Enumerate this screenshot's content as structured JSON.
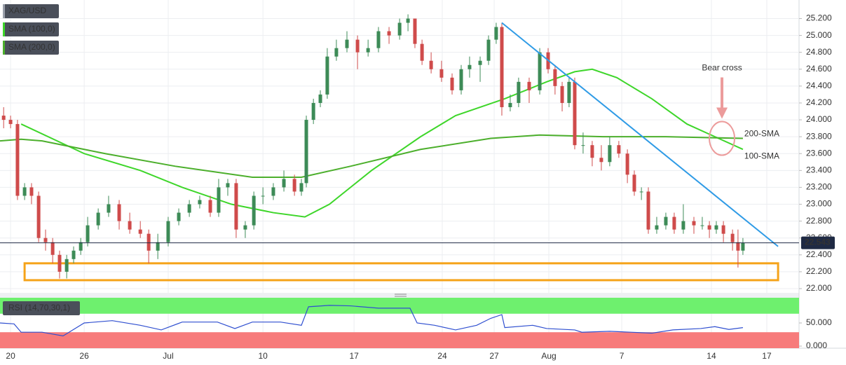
{
  "chart_data": [
    {
      "type": "candlestick",
      "symbol": "XAG/USD",
      "up_color": "#3d8b57",
      "down_color": "#cf4b4b",
      "x": [
        -0.38,
        0,
        0.38,
        0.77,
        1.15,
        1.54,
        1.92,
        2.31,
        2.69,
        3.08,
        3.46,
        3.85,
        4.23,
        4.81,
        5.38,
        5.96,
        6.54,
        7.12,
        7.58,
        8.08,
        8.65,
        9.23,
        9.81,
        10.38,
        10.96,
        11.42,
        11.92,
        12.38,
        12.88,
        13.35,
        13.85,
        14.42,
        15,
        15.58,
        15.96,
        16.23,
        16.62,
        17,
        17.38,
        17.88,
        18.46,
        19.04,
        19.62,
        20.19,
        20.77,
        21.35,
        21.81,
        22.19,
        22.58,
        23.08,
        23.65,
        24.23,
        24.73,
        25.19,
        25.77,
        26.23,
        26.65,
        26.96,
        27.42,
        27.88,
        28.46,
        29.04,
        29.5,
        29.88,
        30.27,
        30.65,
        30.96,
        31.42,
        31.92,
        32.42,
        32.88,
        33.38,
        33.85,
        34.23,
        34.62,
        35,
        35.46,
        35.96,
        36.42,
        36.92,
        37.5,
        37.96,
        38.35,
        38.73,
        39.12,
        39.62,
        39.92,
        40.19
      ],
      "open": [
        24.05,
        24.0,
        23.95,
        23.1,
        23.2,
        23.1,
        22.6,
        22.55,
        22.4,
        22.2,
        22.35,
        22.45,
        22.55,
        22.75,
        22.9,
        23.0,
        22.8,
        22.7,
        22.65,
        22.45,
        22.55,
        22.8,
        22.9,
        23.0,
        23.05,
        22.9,
        23.2,
        23.25,
        22.7,
        22.75,
        23.1,
        23.1,
        23.2,
        23.3,
        23.15,
        23.25,
        24.0,
        24.2,
        24.3,
        24.75,
        24.85,
        24.95,
        24.8,
        24.85,
        25.05,
        25.0,
        25.15,
        25.2,
        24.9,
        24.7,
        24.6,
        24.5,
        24.35,
        24.6,
        24.65,
        24.7,
        24.95,
        25.1,
        24.15,
        24.2,
        24.45,
        24.35,
        24.8,
        24.6,
        24.4,
        24.2,
        24.45,
        23.7,
        23.7,
        23.55,
        23.5,
        23.7,
        23.6,
        23.35,
        23.15,
        23.15,
        22.7,
        22.75,
        22.85,
        22.7,
        22.8,
        22.75,
        22.75,
        22.7,
        22.75,
        22.65,
        22.55,
        22.45
      ],
      "high": [
        24.15,
        24.05,
        24.0,
        23.25,
        23.25,
        23.15,
        22.7,
        22.6,
        22.45,
        22.4,
        22.5,
        22.6,
        22.85,
        22.95,
        23.1,
        23.05,
        22.9,
        22.8,
        22.7,
        22.65,
        22.85,
        22.95,
        23.05,
        23.1,
        23.1,
        23.3,
        23.3,
        23.3,
        22.8,
        23.15,
        23.2,
        23.25,
        23.4,
        23.35,
        23.3,
        24.05,
        24.25,
        24.35,
        24.85,
        24.95,
        25.05,
        25.0,
        24.95,
        25.1,
        25.1,
        25.2,
        25.25,
        25.2,
        24.95,
        24.8,
        24.7,
        24.55,
        24.65,
        24.75,
        24.75,
        25.0,
        25.15,
        25.15,
        24.3,
        24.5,
        24.5,
        24.85,
        24.85,
        24.65,
        24.45,
        24.5,
        24.5,
        23.85,
        23.75,
        23.7,
        23.8,
        23.75,
        23.65,
        23.4,
        23.2,
        23.2,
        22.85,
        22.9,
        22.9,
        23.0,
        22.85,
        22.85,
        22.8,
        22.8,
        22.8,
        22.7,
        22.7,
        22.6
      ],
      "low": [
        23.9,
        23.9,
        23.05,
        23.05,
        23.0,
        22.55,
        22.45,
        22.3,
        22.12,
        22.12,
        22.3,
        22.4,
        22.5,
        22.7,
        22.85,
        22.7,
        22.65,
        22.6,
        22.3,
        22.35,
        22.5,
        22.75,
        22.85,
        22.95,
        22.85,
        22.85,
        23.1,
        22.6,
        22.6,
        22.7,
        23.0,
        23.05,
        23.15,
        23.1,
        23.1,
        23.2,
        23.95,
        24.15,
        24.25,
        24.7,
        24.8,
        24.6,
        24.75,
        24.8,
        24.9,
        24.95,
        25.05,
        24.85,
        24.65,
        24.55,
        24.45,
        24.3,
        24.3,
        24.5,
        24.45,
        24.65,
        24.9,
        24.05,
        24.1,
        24.15,
        24.2,
        24.3,
        24.55,
        24.3,
        24.1,
        24.15,
        23.65,
        23.6,
        23.45,
        23.4,
        23.45,
        23.55,
        23.25,
        23.1,
        23.05,
        22.65,
        22.65,
        22.7,
        22.65,
        22.65,
        22.65,
        22.7,
        22.6,
        22.65,
        22.55,
        22.45,
        22.25,
        22.4
      ],
      "close": [
        24.0,
        23.95,
        23.1,
        23.2,
        23.1,
        22.6,
        22.55,
        22.4,
        22.2,
        22.35,
        22.45,
        22.55,
        22.75,
        22.9,
        23.0,
        22.8,
        22.7,
        22.65,
        22.45,
        22.55,
        22.8,
        22.9,
        23.0,
        23.05,
        22.9,
        23.2,
        23.25,
        22.7,
        22.75,
        23.1,
        23.1,
        23.2,
        23.3,
        23.15,
        23.25,
        24.0,
        24.2,
        24.3,
        24.75,
        24.85,
        24.95,
        24.8,
        24.85,
        25.05,
        25.0,
        25.15,
        25.2,
        24.9,
        24.7,
        24.6,
        24.5,
        24.35,
        24.6,
        24.65,
        24.7,
        24.95,
        25.1,
        24.15,
        24.2,
        24.45,
        24.35,
        24.8,
        24.6,
        24.4,
        24.2,
        24.45,
        23.7,
        23.7,
        23.55,
        23.5,
        23.7,
        23.6,
        23.35,
        23.15,
        23.15,
        22.7,
        22.75,
        22.85,
        22.7,
        22.8,
        22.75,
        22.75,
        22.7,
        22.75,
        22.65,
        22.55,
        22.45,
        22.543
      ],
      "series": [
        {
          "name": "SMA (100,0)",
          "label": "100-SMA",
          "color": "#3ed62a",
          "x": [
            0.58,
            4.04,
            7.12,
            9.42,
            12.12,
            14.42,
            16.15,
            17.5,
            19.81,
            22.5,
            24.42,
            27.12,
            29.42,
            30.96,
            31.92,
            33.27,
            35.19,
            37.12,
            38.65,
            40.19
          ],
          "values": [
            23.95,
            23.6,
            23.4,
            23.2,
            23.0,
            22.9,
            22.85,
            23.0,
            23.4,
            23.8,
            24.05,
            24.25,
            24.45,
            24.57,
            24.6,
            24.5,
            24.25,
            23.95,
            23.8,
            23.65
          ]
        },
        {
          "name": "SMA (200,0)",
          "label": "200-SMA",
          "color": "#4caf2c",
          "x": [
            -0.58,
            0.58,
            1.73,
            5.19,
            9.04,
            13.27,
            15.96,
            18.65,
            22.5,
            26.35,
            29.04,
            32.5,
            35.96,
            40.19
          ],
          "values": [
            23.75,
            23.77,
            23.75,
            23.6,
            23.45,
            23.32,
            23.32,
            23.45,
            23.65,
            23.78,
            23.82,
            23.8,
            23.8,
            23.78
          ]
        }
      ],
      "trendline": {
        "color": "#2f9be6",
        "x": [
          26.96,
          42.12
        ],
        "values": [
          25.15,
          22.5
        ]
      },
      "support_zone": {
        "color": "#f5a31a",
        "x": [
          0.77,
          42.12
        ],
        "values": [
          22.1,
          22.3
        ]
      },
      "last_price": 22.543,
      "bear_cross": {
        "text": "Bear cross",
        "color": "#ec9b9b",
        "x": 39.04,
        "value": 23.78
      },
      "xlim": [
        -0.58,
        43.27
      ],
      "xticks": [
        {
          "value": 0,
          "label": "20"
        },
        {
          "value": 4.04,
          "label": "26"
        },
        {
          "value": 8.65,
          "label": "Jul"
        },
        {
          "value": 13.85,
          "label": "10"
        },
        {
          "value": 18.85,
          "label": "17"
        },
        {
          "value": 23.69,
          "label": "24"
        },
        {
          "value": 26.54,
          "label": "27"
        },
        {
          "value": 29.54,
          "label": "Aug"
        },
        {
          "value": 33.54,
          "label": "7"
        },
        {
          "value": 38.46,
          "label": "14"
        },
        {
          "value": 41.5,
          "label": "17"
        }
      ],
      "ylim": [
        21.95,
        25.42
      ],
      "yticks": [
        {
          "value": 22.0,
          "label": "22.000"
        },
        {
          "value": 22.2,
          "label": "22.200"
        },
        {
          "value": 22.4,
          "label": "22.400"
        },
        {
          "value": 22.6,
          "label": "22.600"
        },
        {
          "value": 22.8,
          "label": "22.800"
        },
        {
          "value": 23.0,
          "label": "23.000"
        },
        {
          "value": 23.2,
          "label": "23.200"
        },
        {
          "value": 23.4,
          "label": "23.400"
        },
        {
          "value": 23.6,
          "label": "23.600"
        },
        {
          "value": 23.8,
          "label": "23.800"
        },
        {
          "value": 24.0,
          "label": "24.000"
        },
        {
          "value": 24.2,
          "label": "24.200"
        },
        {
          "value": 24.4,
          "label": "24.400"
        },
        {
          "value": 24.6,
          "label": "24.600"
        },
        {
          "value": 24.8,
          "label": "24.800"
        },
        {
          "value": 25.0,
          "label": "25.000"
        },
        {
          "value": 25.2,
          "label": "25.200"
        }
      ],
      "grid": true
    },
    {
      "type": "line",
      "title": "RSI (14,70,30,1)",
      "color": "#2f4fd0",
      "upper": 70,
      "lower": 30,
      "upper_color": "#6ef06e",
      "lower_color": "#f77b7b",
      "x": [
        -0.58,
        0.19,
        0.58,
        1.73,
        2.88,
        4.04,
        5.58,
        7.12,
        8.27,
        9.42,
        11.35,
        12.31,
        13.27,
        14.81,
        15.96,
        16.35,
        17.5,
        18.65,
        20.19,
        21.92,
        22.31,
        23.27,
        24.42,
        25.58,
        26.35,
        26.96,
        27.12,
        28.65,
        29.42,
        30.96,
        31.35,
        32.88,
        34.04,
        35.19,
        36.35,
        37.88,
        38.65,
        39.42,
        40.19
      ],
      "values": [
        50,
        48,
        30,
        30,
        22,
        50,
        55,
        45,
        35,
        52,
        52,
        38,
        52,
        52,
        45,
        85,
        88,
        87,
        82,
        82,
        50,
        45,
        35,
        45,
        60,
        68,
        40,
        45,
        38,
        35,
        30,
        32,
        30,
        28,
        35,
        38,
        42,
        36,
        40
      ],
      "ylim": [
        -4.5,
        104.5
      ],
      "yticks": [
        {
          "value": 50,
          "label": "50.000"
        },
        {
          "value": 0,
          "label": "0.000"
        }
      ]
    }
  ]
}
